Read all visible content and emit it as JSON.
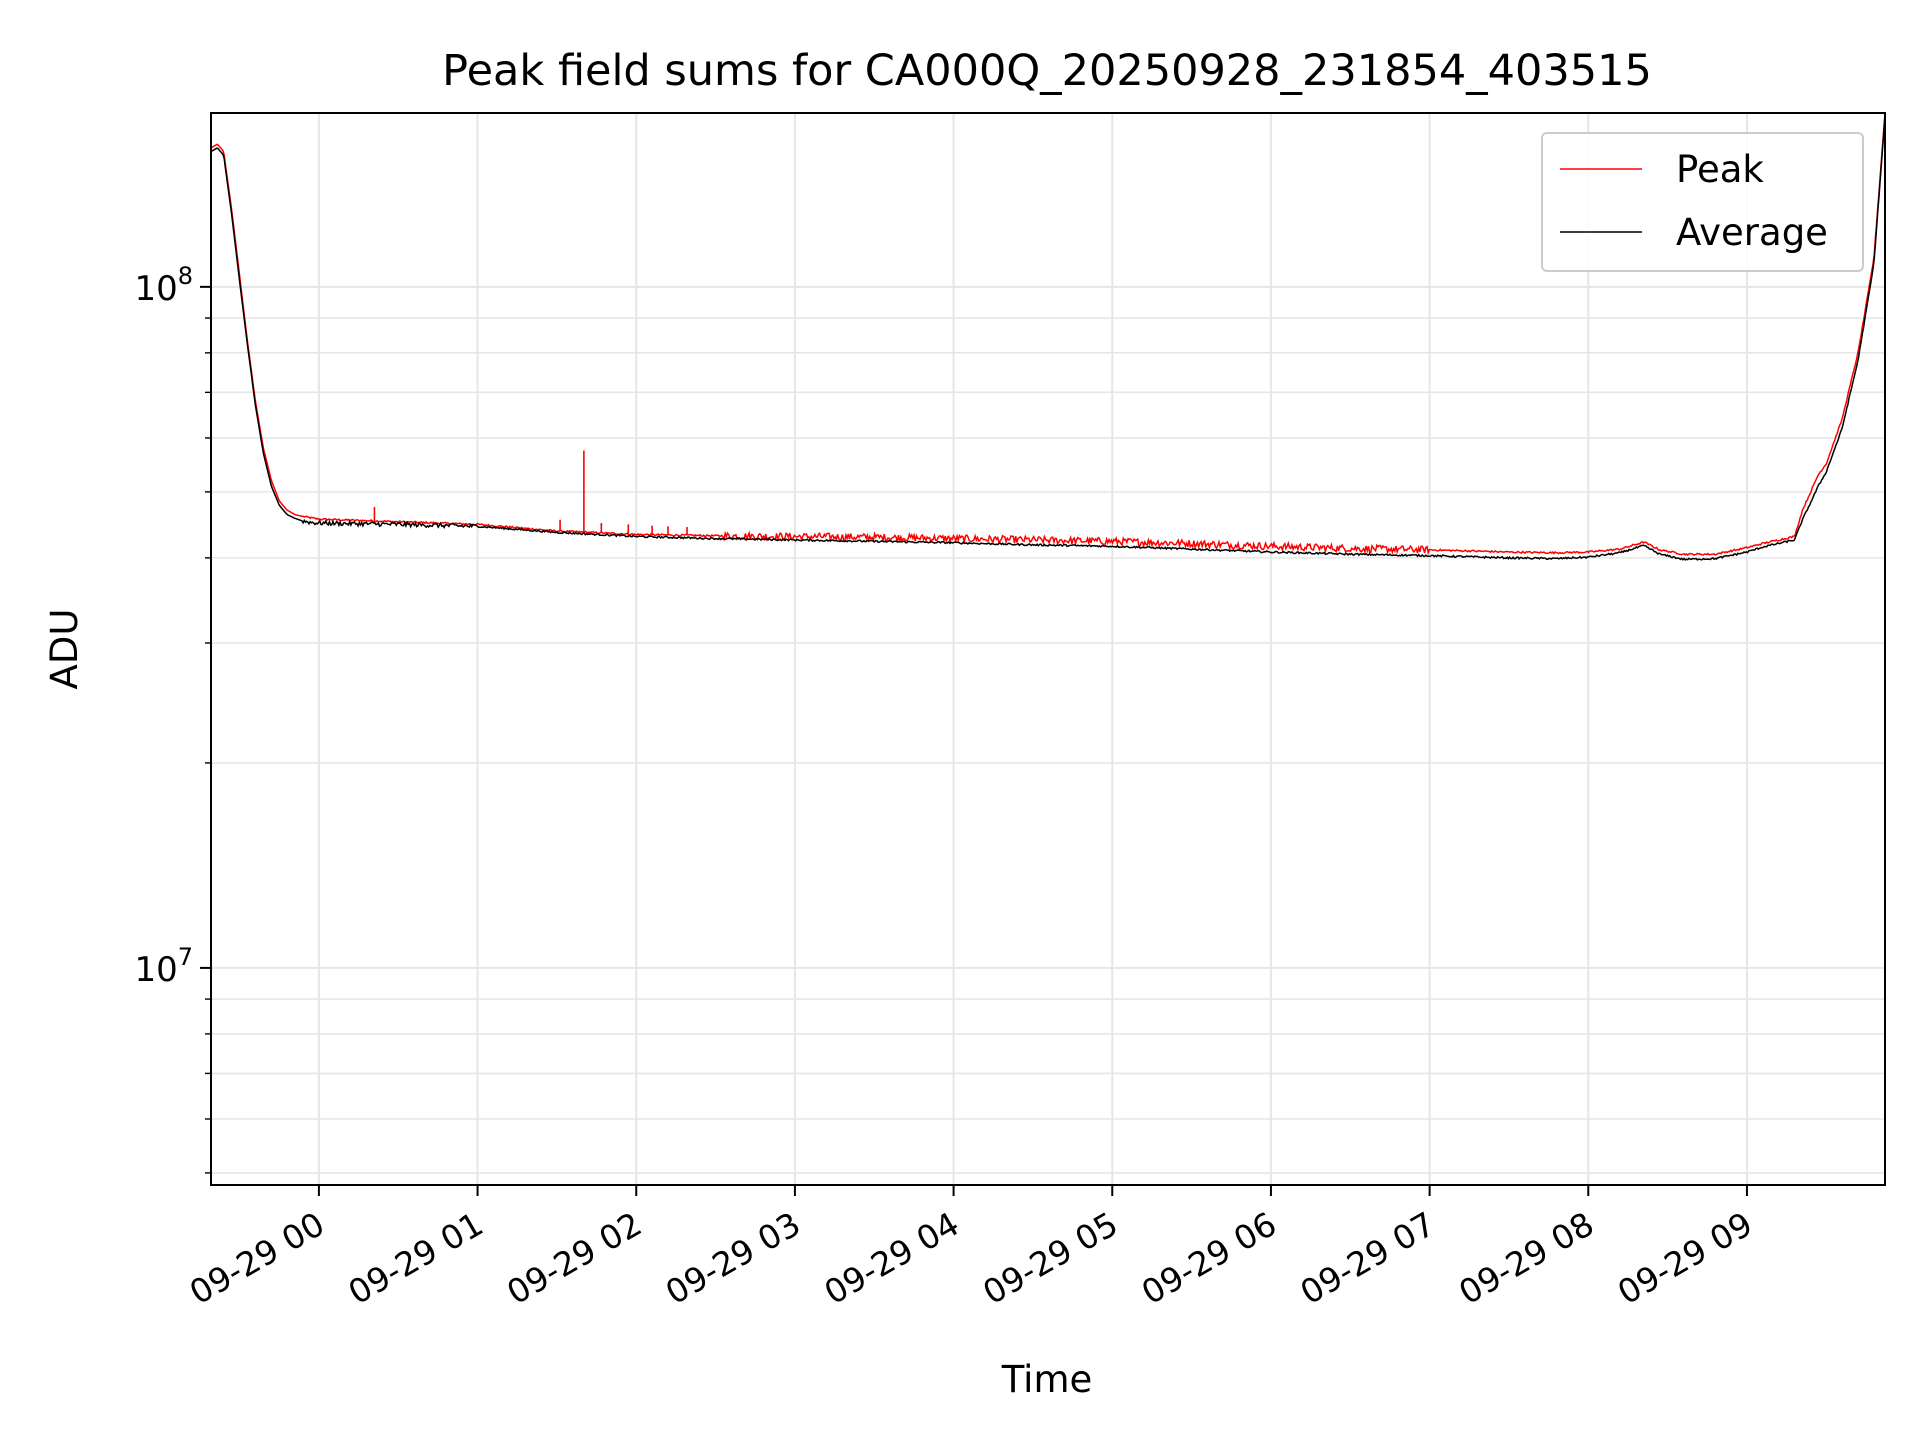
{
  "chart_data": {
    "type": "line",
    "title": "Peak field sums for CA000Q_20250928_231854_403515",
    "xlabel": "Time",
    "ylabel": "ADU",
    "yscale": "log",
    "ylim": [
      4800000,
      180000000
    ],
    "xlim_hours": [
      -0.68,
      9.87
    ],
    "x_unit": "hours relative to 09-29 00:00",
    "grid": true,
    "legend_position": "upper right",
    "x_ticks": [
      {
        "value": 0,
        "label": "09-29 00"
      },
      {
        "value": 1,
        "label": "09-29 01"
      },
      {
        "value": 2,
        "label": "09-29 02"
      },
      {
        "value": 3,
        "label": "09-29 03"
      },
      {
        "value": 4,
        "label": "09-29 04"
      },
      {
        "value": 5,
        "label": "09-29 05"
      },
      {
        "value": 6,
        "label": "09-29 06"
      },
      {
        "value": 7,
        "label": "09-29 07"
      },
      {
        "value": 8,
        "label": "09-29 08"
      },
      {
        "value": 9,
        "label": "09-29 09"
      }
    ],
    "y_ticks": [
      {
        "value": 10000000,
        "base": "10",
        "exp": "7"
      },
      {
        "value": 100000000,
        "base": "10",
        "exp": "8"
      }
    ],
    "series": [
      {
        "name": "Peak",
        "color": "#ff0000",
        "x": [
          -0.68,
          -0.64,
          -0.6,
          -0.55,
          -0.5,
          -0.45,
          -0.4,
          -0.35,
          -0.3,
          -0.25,
          -0.2,
          -0.15,
          -0.1,
          -0.05,
          0.0,
          0.25,
          0.5,
          1.0,
          1.5,
          2.0,
          2.5,
          3.0,
          3.5,
          4.0,
          4.5,
          5.0,
          5.5,
          6.0,
          6.5,
          7.0,
          7.5,
          7.8,
          8.0,
          8.2,
          8.35,
          8.45,
          8.6,
          8.8,
          9.0,
          9.1,
          9.2,
          9.3,
          9.35,
          9.45,
          9.5,
          9.6,
          9.7,
          9.8,
          9.87
        ],
        "y": [
          160000000,
          162000000,
          158000000,
          130000000,
          104000000,
          83000000,
          68000000,
          58000000,
          52000000,
          48500000,
          47000000,
          46300000,
          46000000,
          45800000,
          45600000,
          45400000,
          45200000,
          44800000,
          43800000,
          43300000,
          43100000,
          43000000,
          42900000,
          42700000,
          42500000,
          42300000,
          42000000,
          41600000,
          41300000,
          41100000,
          40800000,
          40700000,
          40800000,
          41200000,
          42200000,
          41100000,
          40500000,
          40500000,
          41400000,
          42000000,
          42500000,
          43000000,
          47000000,
          53000000,
          55000000,
          64000000,
          80000000,
          110000000,
          180000000
        ],
        "spikes": [
          {
            "x": 0.35,
            "y": 47500000
          },
          {
            "x": 1.52,
            "y": 45500000
          },
          {
            "x": 1.67,
            "y": 57500000
          },
          {
            "x": 1.78,
            "y": 45000000
          },
          {
            "x": 1.95,
            "y": 44800000
          },
          {
            "x": 2.1,
            "y": 44600000
          },
          {
            "x": 2.2,
            "y": 44500000
          },
          {
            "x": 2.32,
            "y": 44400000
          }
        ],
        "noise_band": {
          "from": 2.55,
          "to": 7.0,
          "amplitude": 0.025
        }
      },
      {
        "name": "Average",
        "color": "#000000",
        "x": [
          -0.68,
          -0.64,
          -0.6,
          -0.55,
          -0.5,
          -0.45,
          -0.4,
          -0.35,
          -0.3,
          -0.25,
          -0.2,
          -0.15,
          -0.1,
          -0.05,
          0.0,
          0.25,
          0.5,
          1.0,
          1.5,
          2.0,
          2.5,
          3.0,
          3.5,
          4.0,
          4.5,
          5.0,
          5.5,
          6.0,
          6.5,
          7.0,
          7.5,
          7.8,
          8.0,
          8.2,
          8.35,
          8.45,
          8.6,
          8.8,
          9.0,
          9.1,
          9.2,
          9.3,
          9.35,
          9.45,
          9.5,
          9.6,
          9.7,
          9.8,
          9.87
        ],
        "y": [
          158000000,
          160000000,
          156000000,
          128000000,
          102000000,
          82000000,
          67000000,
          57000000,
          51000000,
          47800000,
          46300000,
          45700000,
          45300000,
          45100000,
          45000000,
          44900000,
          44800000,
          44500000,
          43600000,
          43000000,
          42700000,
          42500000,
          42300000,
          42100000,
          41800000,
          41600000,
          41200000,
          40800000,
          40500000,
          40300000,
          40000000,
          39900000,
          40100000,
          40700000,
          41700000,
          40500000,
          39800000,
          39900000,
          40800000,
          41500000,
          42000000,
          42500000,
          45500000,
          51000000,
          53500000,
          62000000,
          78000000,
          108000000,
          178000000
        ],
        "noise_band": {
          "from": -0.1,
          "to": 1.0,
          "amplitude": 0.015
        }
      }
    ]
  }
}
